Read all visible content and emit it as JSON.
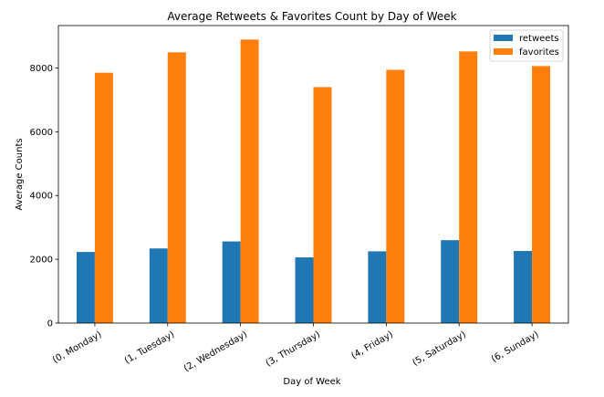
{
  "chart_data": {
    "type": "bar",
    "title": "Average Retweets & Favorites Count by Day of Week",
    "xlabel": "Day of Week",
    "ylabel": "Average Counts",
    "categories": [
      "(0, Monday)",
      "(1, Tuesday)",
      "(2, Wednesday)",
      "(3, Thursday)",
      "(4, Friday)",
      "(5, Saturday)",
      "(6, Sunday)"
    ],
    "series": [
      {
        "name": "retweets",
        "color": "#1f77b4",
        "values": [
          2230,
          2340,
          2560,
          2060,
          2250,
          2600,
          2260
        ]
      },
      {
        "name": "favorites",
        "color": "#ff7f0e",
        "values": [
          7850,
          8490,
          8890,
          7400,
          7940,
          8520,
          8060
        ]
      }
    ],
    "ylim": [
      0,
      9330
    ],
    "yticks": [
      0,
      2000,
      4000,
      6000,
      8000
    ],
    "ytick_labels": [
      "0",
      "2000",
      "4000",
      "6000",
      "8000"
    ],
    "grid": false,
    "legend_position": "top-right"
  }
}
